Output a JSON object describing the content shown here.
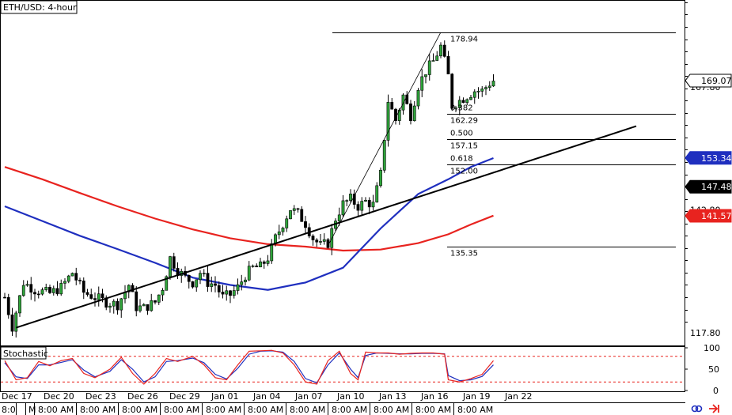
{
  "chart_data": {
    "type": "candlestick",
    "title": "ETH/USD: 4-hour",
    "subpanel_title": "Stochastic",
    "y_range": [
      115.2,
      185.3
    ],
    "stoch_range": [
      0,
      100
    ],
    "price_axis": [
      {
        "label": "167.80",
        "value": 167.8
      },
      {
        "label": "142.80",
        "value": 142.8
      },
      {
        "label": "117.80",
        "value": 117.8
      }
    ],
    "stoch_axis": [
      {
        "label": "100",
        "value": 100
      },
      {
        "label": "50",
        "value": 50
      },
      {
        "label": "0",
        "value": 0
      }
    ],
    "stoch_levels": [
      80,
      20
    ],
    "price_tags": [
      {
        "label": "169.07",
        "value": 169.07,
        "color": "#000000",
        "fill": "#ffffff",
        "text_color": "#000000"
      },
      {
        "label": "153.34",
        "value": 153.34,
        "color": "#1f2fbf",
        "fill": "#1f2fbf",
        "text_color": "#ffffff"
      },
      {
        "label": "147.48",
        "value": 147.48,
        "color": "#000000",
        "fill": "#000000",
        "text_color": "#ffffff"
      },
      {
        "label": "141.57",
        "value": 141.57,
        "color": "#e8231f",
        "fill": "#e8231f",
        "text_color": "#ffffff"
      }
    ],
    "date_labels": [
      "Dec 17",
      "Dec 20",
      "Dec 23",
      "Dec 26",
      "Dec 29",
      "Jan 01",
      "Jan 04",
      "Jan 07",
      "Jan 10",
      "Jan 13",
      "Jan 16",
      "Jan 19",
      "Jan 22"
    ],
    "time_labels": [
      "8:0",
      "M",
      "8:00 AM",
      "8:00 AM",
      "8:00 AM",
      "8:00 AM",
      "8:00 AM",
      "8:00 AM",
      "8:00 AM",
      "8:00 AM",
      "8:00 AM",
      "8:00 AM",
      "8:00 AM"
    ],
    "fibonacci": [
      {
        "level": 1.0,
        "price": 178.94,
        "ratio_label": "",
        "price_label": "178.94"
      },
      {
        "level": 0.382,
        "price": 162.29,
        "ratio_label": "0.382",
        "price_label": "162.29"
      },
      {
        "level": 0.5,
        "price": 157.15,
        "ratio_label": "0.500",
        "price_label": "157.15"
      },
      {
        "level": 0.618,
        "price": 152.0,
        "ratio_label": "0.618",
        "price_label": "152.00"
      },
      {
        "level": 0.0,
        "price": 135.35,
        "ratio_label": "",
        "price_label": "135.35"
      }
    ],
    "trendline": {
      "from": {
        "bar": 3,
        "price": 118.8
      },
      "to": {
        "bar": 168,
        "price": 159.8
      }
    },
    "swing_line": {
      "from": {
        "bar": 86,
        "price": 135.5
      },
      "to": {
        "bar": 116,
        "price": 178.9
      }
    },
    "ma_blue": [
      [
        0,
        143.5
      ],
      [
        10,
        140.5
      ],
      [
        20,
        137.5
      ],
      [
        30,
        134.8
      ],
      [
        40,
        132.0
      ],
      [
        50,
        129.0
      ],
      [
        60,
        127.5
      ],
      [
        70,
        126.5
      ],
      [
        80,
        128.0
      ],
      [
        90,
        131.0
      ],
      [
        100,
        139.0
      ],
      [
        110,
        146.0
      ],
      [
        118,
        149.0
      ],
      [
        124,
        151.5
      ],
      [
        130,
        153.3
      ]
    ],
    "ma_red": [
      [
        0,
        151.5
      ],
      [
        10,
        149.0
      ],
      [
        20,
        146.2
      ],
      [
        30,
        143.5
      ],
      [
        40,
        141.0
      ],
      [
        50,
        138.8
      ],
      [
        60,
        137.0
      ],
      [
        70,
        135.8
      ],
      [
        80,
        135.3
      ],
      [
        90,
        134.5
      ],
      [
        100,
        134.7
      ],
      [
        110,
        136.0
      ],
      [
        118,
        137.8
      ],
      [
        124,
        139.8
      ],
      [
        130,
        141.6
      ]
    ],
    "close_path": [
      [
        0,
        125
      ],
      [
        2,
        119
      ],
      [
        5,
        128
      ],
      [
        8,
        126.5
      ],
      [
        12,
        125.8
      ],
      [
        15,
        127
      ],
      [
        18,
        130
      ],
      [
        21,
        126
      ],
      [
        24,
        125
      ],
      [
        27,
        124
      ],
      [
        30,
        123.5
      ],
      [
        33,
        127.5
      ],
      [
        35,
        123
      ],
      [
        37,
        122.8
      ],
      [
        40,
        124
      ],
      [
        42,
        127
      ],
      [
        44,
        133
      ],
      [
        46,
        130.5
      ],
      [
        48,
        129
      ],
      [
        50,
        128
      ],
      [
        52,
        130
      ],
      [
        54,
        128
      ],
      [
        56,
        127.5
      ],
      [
        58,
        125
      ],
      [
        60,
        125.5
      ],
      [
        62,
        127
      ],
      [
        64,
        129.5
      ],
      [
        66,
        131
      ],
      [
        68,
        131.2
      ],
      [
        70,
        133
      ],
      [
        72,
        137
      ],
      [
        74,
        140
      ],
      [
        76,
        143
      ],
      [
        78,
        142
      ],
      [
        80,
        140
      ],
      [
        82,
        137
      ],
      [
        84,
        135.5
      ],
      [
        86,
        136
      ],
      [
        88,
        141
      ],
      [
        90,
        144
      ],
      [
        92,
        145
      ],
      [
        94,
        143.5
      ],
      [
        96,
        144.5
      ],
      [
        98,
        143.8
      ],
      [
        100,
        150
      ],
      [
        102,
        165
      ],
      [
        104,
        161
      ],
      [
        106,
        166
      ],
      [
        108,
        162
      ],
      [
        110,
        168
      ],
      [
        112,
        171
      ],
      [
        114,
        173
      ],
      [
        116,
        176
      ],
      [
        118,
        170
      ],
      [
        119,
        164
      ],
      [
        121,
        165
      ],
      [
        123,
        166
      ],
      [
        125,
        167
      ],
      [
        127,
        167
      ],
      [
        129,
        168.5
      ],
      [
        130,
        169.07
      ]
    ],
    "stoch_k": [
      [
        0,
        70
      ],
      [
        3,
        25
      ],
      [
        6,
        30
      ],
      [
        9,
        68
      ],
      [
        12,
        58
      ],
      [
        15,
        70
      ],
      [
        18,
        75
      ],
      [
        21,
        40
      ],
      [
        24,
        30
      ],
      [
        28,
        50
      ],
      [
        31,
        78
      ],
      [
        34,
        40
      ],
      [
        37,
        15
      ],
      [
        40,
        40
      ],
      [
        43,
        75
      ],
      [
        46,
        68
      ],
      [
        50,
        80
      ],
      [
        53,
        60
      ],
      [
        56,
        30
      ],
      [
        59,
        25
      ],
      [
        62,
        60
      ],
      [
        65,
        92
      ],
      [
        68,
        93
      ],
      [
        71,
        94
      ],
      [
        74,
        88
      ],
      [
        77,
        60
      ],
      [
        80,
        20
      ],
      [
        83,
        15
      ],
      [
        86,
        70
      ],
      [
        89,
        92
      ],
      [
        92,
        40
      ],
      [
        94,
        25
      ],
      [
        96,
        90
      ],
      [
        99,
        88
      ],
      [
        102,
        88
      ],
      [
        105,
        85
      ],
      [
        108,
        87
      ],
      [
        111,
        88
      ],
      [
        114,
        88
      ],
      [
        117,
        85
      ],
      [
        118,
        25
      ],
      [
        121,
        20
      ],
      [
        124,
        28
      ],
      [
        127,
        38
      ],
      [
        130,
        70
      ]
    ],
    "stoch_d": [
      [
        0,
        65
      ],
      [
        3,
        32
      ],
      [
        6,
        28
      ],
      [
        9,
        60
      ],
      [
        12,
        60
      ],
      [
        15,
        66
      ],
      [
        18,
        72
      ],
      [
        21,
        48
      ],
      [
        24,
        32
      ],
      [
        28,
        45
      ],
      [
        31,
        72
      ],
      [
        34,
        50
      ],
      [
        37,
        20
      ],
      [
        40,
        32
      ],
      [
        43,
        68
      ],
      [
        46,
        70
      ],
      [
        50,
        76
      ],
      [
        53,
        65
      ],
      [
        56,
        38
      ],
      [
        59,
        27
      ],
      [
        62,
        52
      ],
      [
        65,
        85
      ],
      [
        68,
        92
      ],
      [
        71,
        93
      ],
      [
        74,
        90
      ],
      [
        77,
        68
      ],
      [
        80,
        28
      ],
      [
        83,
        18
      ],
      [
        86,
        60
      ],
      [
        89,
        88
      ],
      [
        92,
        50
      ],
      [
        94,
        30
      ],
      [
        96,
        82
      ],
      [
        99,
        88
      ],
      [
        102,
        87
      ],
      [
        105,
        86
      ],
      [
        108,
        86
      ],
      [
        111,
        87
      ],
      [
        114,
        87
      ],
      [
        117,
        86
      ],
      [
        118,
        35
      ],
      [
        121,
        23
      ],
      [
        124,
        25
      ],
      [
        127,
        33
      ],
      [
        130,
        60
      ]
    ]
  }
}
